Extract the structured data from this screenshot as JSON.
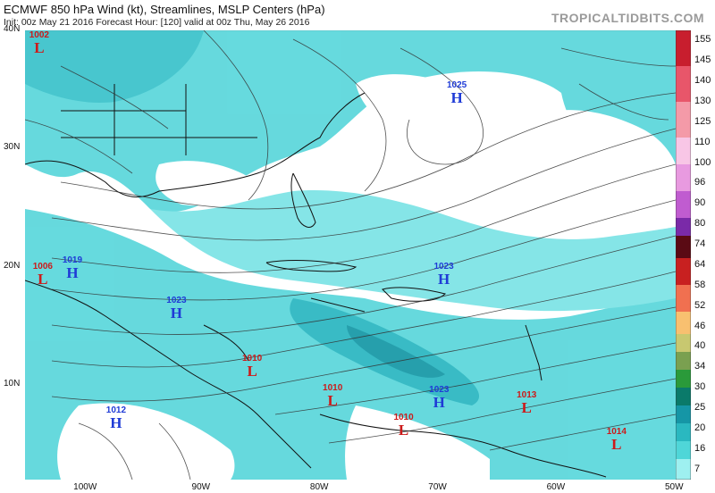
{
  "header": {
    "title": "ECMWF 850 hPa Wind (kt), Streamlines, MSLP Centers (hPa)",
    "subtitle": "Init: 00z May 21 2016   Forecast Hour: [120]   valid at 00z Thu, May 26 2016",
    "brand": "TROPICALTIDBITS.COM"
  },
  "axes": {
    "lat": [
      {
        "label": "40N",
        "lat": 40
      },
      {
        "label": "30N",
        "lat": 30
      },
      {
        "label": "20N",
        "lat": 20
      },
      {
        "label": "10N",
        "lat": 10
      }
    ],
    "lon": [
      {
        "label": "100W",
        "lon": -100
      },
      {
        "label": "90W",
        "lon": -90
      },
      {
        "label": "80W",
        "lon": -80
      },
      {
        "label": "70W",
        "lon": -70
      },
      {
        "label": "60W",
        "lon": -60
      },
      {
        "label": "50W",
        "lon": -50
      }
    ]
  },
  "colorbar": {
    "labels": [
      "155",
      "145",
      "140",
      "130",
      "125",
      "110",
      "100",
      "96",
      "90",
      "80",
      "74",
      "64",
      "58",
      "52",
      "46",
      "40",
      "34",
      "30",
      "25",
      "20",
      "16",
      "7"
    ]
  },
  "pressure_centers": [
    {
      "type": "L",
      "value": "1002",
      "lat": 38.9,
      "lon": -103.8
    },
    {
      "type": "H",
      "value": "1025",
      "lat": 34.6,
      "lon": -68.5
    },
    {
      "type": "L",
      "value": "1006",
      "lat": 19.3,
      "lon": -103.5
    },
    {
      "type": "H",
      "value": "1019",
      "lat": 19.8,
      "lon": -101.0
    },
    {
      "type": "H",
      "value": "1023",
      "lat": 19.3,
      "lon": -69.6
    },
    {
      "type": "H",
      "value": "1023",
      "lat": 16.4,
      "lon": -92.2
    },
    {
      "type": "L",
      "value": "1010",
      "lat": 11.5,
      "lon": -85.8
    },
    {
      "type": "L",
      "value": "1010",
      "lat": 9.0,
      "lon": -79.0
    },
    {
      "type": "H",
      "value": "1023",
      "lat": 8.9,
      "lon": -70.0
    },
    {
      "type": "L",
      "value": "1013",
      "lat": 8.4,
      "lon": -62.6
    },
    {
      "type": "H",
      "value": "1012",
      "lat": 7.1,
      "lon": -97.3
    },
    {
      "type": "L",
      "value": "1010",
      "lat": 6.5,
      "lon": -73.0
    },
    {
      "type": "L",
      "value": "1014",
      "lat": 5.3,
      "lon": -55.0
    }
  ],
  "colors": {
    "ocean_land": "#ffffff",
    "wind_light": "#9ef0f0",
    "wind_mid": "#4fd6d8",
    "wind_strong": "#2ab8c0",
    "wind_core": "#1596a6",
    "high": "#1f3bd6",
    "low": "#cc1a1a"
  }
}
